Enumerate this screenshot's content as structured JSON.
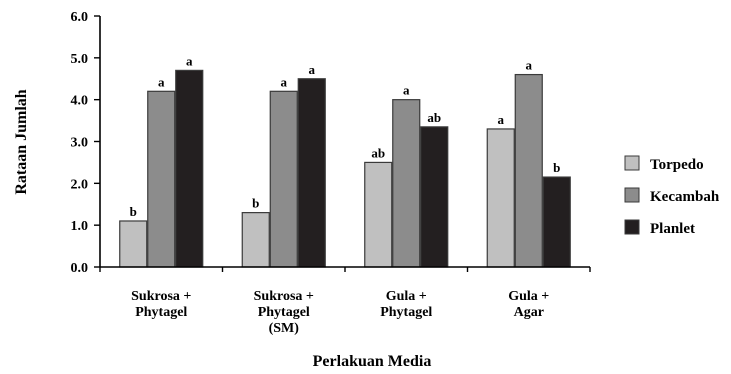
{
  "chart_data": {
    "type": "bar",
    "title": "",
    "xlabel": "Perlakuan Media",
    "ylabel": "Rataan Jumlah",
    "ylim": [
      0,
      6
    ],
    "yticks": [
      "0.0",
      "1.0",
      "2.0",
      "3.0",
      "4.0",
      "5.0",
      "6.0"
    ],
    "categories": [
      [
        "Sukrosa +",
        "Phytagel"
      ],
      [
        "Sukrosa +",
        "Phytagel",
        "(SM)"
      ],
      [
        "Gula +",
        "Phytagel"
      ],
      [
        "Gula +",
        "Agar"
      ]
    ],
    "series": [
      {
        "name": "Torpedo",
        "color": "#c0c0c0",
        "values": [
          1.1,
          1.3,
          2.5,
          3.3
        ],
        "labels": [
          "b",
          "b",
          "ab",
          "a"
        ]
      },
      {
        "name": "Kecambah",
        "color": "#8c8c8c",
        "values": [
          4.2,
          4.2,
          4.0,
          4.6
        ],
        "labels": [
          "a",
          "a",
          "a",
          "a"
        ]
      },
      {
        "name": "Planlet",
        "color": "#231f20",
        "values": [
          4.7,
          4.5,
          3.35,
          2.15
        ],
        "labels": [
          "a",
          "a",
          "ab",
          "b"
        ]
      }
    ],
    "grid": false,
    "legend_position": "right"
  }
}
